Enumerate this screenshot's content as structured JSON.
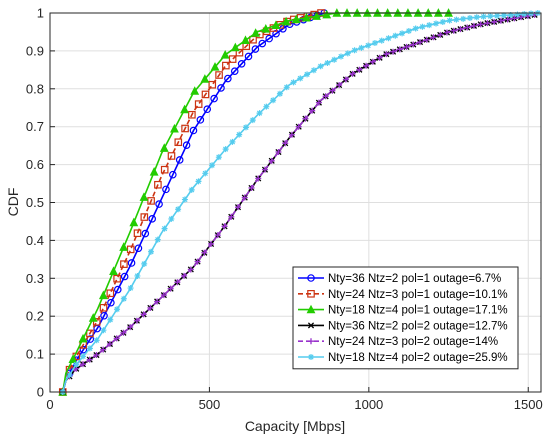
{
  "chart_data": {
    "type": "line",
    "title": "",
    "xlabel": "Capacity [Mbps]",
    "ylabel": "CDF",
    "xlim": [
      0,
      1540
    ],
    "ylim": [
      0,
      1
    ],
    "xticks": [
      0,
      500,
      1000,
      1500
    ],
    "yticks": [
      0,
      0.1,
      0.2,
      0.3,
      0.4,
      0.5,
      0.6,
      0.7,
      0.8,
      0.9,
      1
    ],
    "grid": true,
    "legend_position": "bottom-right",
    "series": [
      {
        "name": "Nty=36 Ntz=2 pol=1 outage=6.7%",
        "color": "#0000ff",
        "line_style": "solid",
        "marker": "circle",
        "points": [
          [
            40,
            0
          ],
          [
            50,
            0.03
          ],
          [
            80,
            0.08
          ],
          [
            150,
            0.17
          ],
          [
            250,
            0.33
          ],
          [
            350,
            0.51
          ],
          [
            450,
            0.69
          ],
          [
            550,
            0.82
          ],
          [
            650,
            0.91
          ],
          [
            750,
            0.97
          ],
          [
            860,
            1.0
          ]
        ]
      },
      {
        "name": "Nty=24 Ntz=3 pol=1 outage=10.1%",
        "color": "#cc3311",
        "line_style": "dashed",
        "marker": "square",
        "points": [
          [
            40,
            0
          ],
          [
            50,
            0.04
          ],
          [
            80,
            0.09
          ],
          [
            150,
            0.19
          ],
          [
            250,
            0.37
          ],
          [
            350,
            0.57
          ],
          [
            450,
            0.74
          ],
          [
            550,
            0.86
          ],
          [
            650,
            0.94
          ],
          [
            750,
            0.98
          ],
          [
            850,
            1.0
          ]
        ]
      },
      {
        "name": "Nty=18 Ntz=4 pol=1 outage=17.1%",
        "color": "#22cc00",
        "line_style": "solid",
        "marker": "triangle",
        "points": [
          [
            40,
            0
          ],
          [
            50,
            0.05
          ],
          [
            80,
            0.1
          ],
          [
            150,
            0.22
          ],
          [
            250,
            0.42
          ],
          [
            350,
            0.63
          ],
          [
            450,
            0.79
          ],
          [
            550,
            0.89
          ],
          [
            650,
            0.95
          ],
          [
            750,
            0.98
          ],
          [
            900,
            1.0
          ],
          [
            1250,
            1.0
          ]
        ]
      },
      {
        "name": "Nty=36 Ntz=2 pol=2 outage=12.7%",
        "color": "#000000",
        "line_style": "solid",
        "marker": "x",
        "points": [
          [
            40,
            0
          ],
          [
            50,
            0.03
          ],
          [
            80,
            0.06
          ],
          [
            150,
            0.1
          ],
          [
            250,
            0.17
          ],
          [
            350,
            0.25
          ],
          [
            450,
            0.33
          ],
          [
            550,
            0.44
          ],
          [
            650,
            0.56
          ],
          [
            750,
            0.67
          ],
          [
            850,
            0.77
          ],
          [
            950,
            0.84
          ],
          [
            1050,
            0.89
          ],
          [
            1150,
            0.92
          ],
          [
            1250,
            0.95
          ],
          [
            1350,
            0.97
          ],
          [
            1450,
            0.985
          ],
          [
            1520,
            0.995
          ]
        ]
      },
      {
        "name": "Nty=24 Ntz=3 pol=2 outage=14%",
        "color": "#9933cc",
        "line_style": "dashed",
        "marker": "plus",
        "points": [
          [
            40,
            0
          ],
          [
            50,
            0.03
          ],
          [
            80,
            0.06
          ],
          [
            150,
            0.1
          ],
          [
            250,
            0.17
          ],
          [
            350,
            0.25
          ],
          [
            450,
            0.33
          ],
          [
            550,
            0.44
          ],
          [
            650,
            0.56
          ],
          [
            750,
            0.67
          ],
          [
            850,
            0.77
          ],
          [
            950,
            0.84
          ],
          [
            1050,
            0.89
          ],
          [
            1150,
            0.92
          ],
          [
            1250,
            0.95
          ],
          [
            1350,
            0.97
          ],
          [
            1450,
            0.985
          ],
          [
            1520,
            0.995
          ]
        ]
      },
      {
        "name": "Nty=18 Ntz=4 pol=2 outage=25.9%",
        "color": "#55ccee",
        "line_style": "solid",
        "marker": "asterisk",
        "points": [
          [
            40,
            0
          ],
          [
            50,
            0.03
          ],
          [
            80,
            0.07
          ],
          [
            150,
            0.14
          ],
          [
            250,
            0.27
          ],
          [
            350,
            0.42
          ],
          [
            450,
            0.54
          ],
          [
            550,
            0.64
          ],
          [
            650,
            0.73
          ],
          [
            750,
            0.81
          ],
          [
            850,
            0.86
          ],
          [
            950,
            0.9
          ],
          [
            1050,
            0.93
          ],
          [
            1150,
            0.96
          ],
          [
            1250,
            0.98
          ],
          [
            1350,
            0.99
          ],
          [
            1450,
            0.995
          ],
          [
            1530,
            1.0
          ]
        ]
      }
    ]
  }
}
